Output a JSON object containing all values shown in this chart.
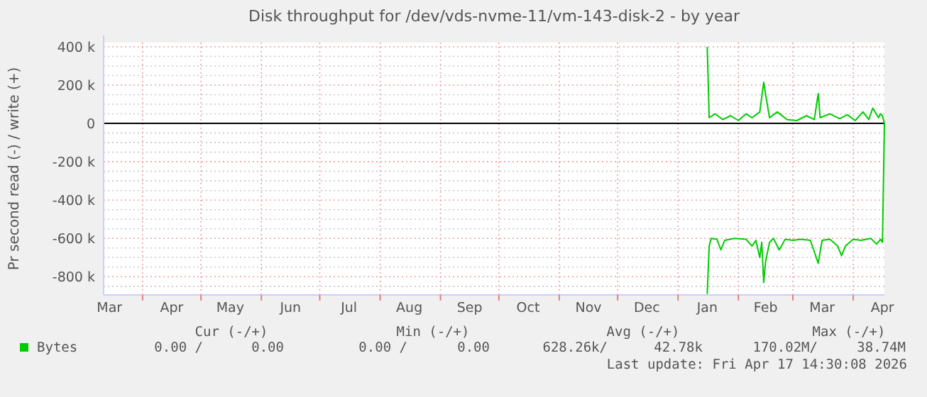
{
  "chart_data": {
    "type": "line",
    "title": "Disk throughput for /dev/vds-nvme-11/vm-143-disk-2 - by year",
    "ylabel": "Pr second read (-) / write (+)",
    "xlim": [
      "2025-03-12",
      "2026-04-17"
    ],
    "xticks": [
      {
        "value": "2025-03-15",
        "label": "Mar"
      },
      {
        "value": "2025-04-01",
        "label": null
      },
      {
        "value": "2025-04-16",
        "label": "Apr"
      },
      {
        "value": "2025-05-01",
        "label": null
      },
      {
        "value": "2025-05-16",
        "label": "May"
      },
      {
        "value": "2025-06-01",
        "label": null
      },
      {
        "value": "2025-06-16",
        "label": "Jun"
      },
      {
        "value": "2025-07-01",
        "label": null
      },
      {
        "value": "2025-07-16",
        "label": "Jul"
      },
      {
        "value": "2025-08-01",
        "label": null
      },
      {
        "value": "2025-08-16",
        "label": "Aug"
      },
      {
        "value": "2025-09-01",
        "label": null
      },
      {
        "value": "2025-09-16",
        "label": "Sep"
      },
      {
        "value": "2025-10-01",
        "label": null
      },
      {
        "value": "2025-10-16",
        "label": "Oct"
      },
      {
        "value": "2025-11-01",
        "label": null
      },
      {
        "value": "2025-11-16",
        "label": "Nov"
      },
      {
        "value": "2025-12-01",
        "label": null
      },
      {
        "value": "2025-12-16",
        "label": "Dec"
      },
      {
        "value": "2026-01-01",
        "label": null
      },
      {
        "value": "2026-01-16",
        "label": "Jan"
      },
      {
        "value": "2026-02-01",
        "label": null
      },
      {
        "value": "2026-02-15",
        "label": "Feb"
      },
      {
        "value": "2026-03-01",
        "label": null
      },
      {
        "value": "2026-03-16",
        "label": "Mar"
      },
      {
        "value": "2026-04-01",
        "label": null
      },
      {
        "value": "2026-04-16",
        "label": "Apr"
      }
    ],
    "ylim": [
      -895000,
      422000
    ],
    "yticks": [
      {
        "value": -850000,
        "label": null
      },
      {
        "value": -800000,
        "label": "-800 k"
      },
      {
        "value": -750000,
        "label": null
      },
      {
        "value": -700000,
        "label": null
      },
      {
        "value": -650000,
        "label": null
      },
      {
        "value": -600000,
        "label": "-600 k"
      },
      {
        "value": -550000,
        "label": null
      },
      {
        "value": -500000,
        "label": null
      },
      {
        "value": -450000,
        "label": null
      },
      {
        "value": -400000,
        "label": "-400 k"
      },
      {
        "value": -350000,
        "label": null
      },
      {
        "value": -300000,
        "label": null
      },
      {
        "value": -250000,
        "label": null
      },
      {
        "value": -200000,
        "label": "-200 k"
      },
      {
        "value": -150000,
        "label": null
      },
      {
        "value": -100000,
        "label": null
      },
      {
        "value": -50000,
        "label": null
      },
      {
        "value": 0,
        "label": "0"
      },
      {
        "value": 50000,
        "label": null
      },
      {
        "value": 100000,
        "label": null
      },
      {
        "value": 150000,
        "label": null
      },
      {
        "value": 200000,
        "label": "200 k"
      },
      {
        "value": 250000,
        "label": null
      },
      {
        "value": 300000,
        "label": null
      },
      {
        "value": 350000,
        "label": null
      },
      {
        "value": 400000,
        "label": "400 k"
      }
    ],
    "grid": true,
    "legend": "bottom",
    "marker": "none",
    "line_style": "solid",
    "ref_lines": [
      {
        "axis": "y",
        "value": 0,
        "color": "#000000"
      }
    ],
    "series": [
      {
        "name": "Bytes",
        "color": "#00cc00",
        "x": [
          "2026-01-16",
          "2026-01-17",
          "2026-01-20",
          "2026-01-24",
          "2026-01-28",
          "2026-02-01",
          "2026-02-05",
          "2026-02-08",
          "2026-02-12",
          "2026-02-14",
          "2026-02-15",
          "2026-02-17",
          "2026-02-21",
          "2026-02-26",
          "2026-03-03",
          "2026-03-08",
          "2026-03-12",
          "2026-03-14",
          "2026-03-15",
          "2026-03-20",
          "2026-03-25",
          "2026-03-29",
          "2026-04-02",
          "2026-04-06",
          "2026-04-09",
          "2026-04-11",
          "2026-04-14",
          "2026-04-15",
          "2026-04-16",
          "2026-04-17",
          null,
          "2026-01-16",
          "2026-01-17",
          "2026-01-18",
          "2026-01-21",
          "2026-01-23",
          "2026-01-25",
          "2026-01-30",
          "2026-02-05",
          "2026-02-08",
          "2026-02-10",
          "2026-02-12",
          "2026-02-13",
          "2026-02-14",
          "2026-02-15",
          "2026-02-17",
          "2026-02-19",
          "2026-02-22",
          "2026-02-25",
          "2026-03-01",
          "2026-03-05",
          "2026-03-10",
          "2026-03-14",
          "2026-03-16",
          "2026-03-20",
          "2026-03-24",
          "2026-03-26",
          "2026-03-28",
          "2026-04-01",
          "2026-04-05",
          "2026-04-10",
          "2026-04-13",
          "2026-04-15",
          "2026-04-16",
          "2026-04-17"
        ],
        "values": [
          400000,
          30000,
          50000,
          20000,
          40000,
          15000,
          50000,
          30000,
          60000,
          215000,
          150000,
          30000,
          60000,
          20000,
          15000,
          40000,
          20000,
          155000,
          30000,
          50000,
          25000,
          45000,
          15000,
          60000,
          20000,
          80000,
          30000,
          50000,
          40000,
          0,
          null,
          -890000,
          -640000,
          -600000,
          -605000,
          -660000,
          -610000,
          -600000,
          -605000,
          -640000,
          -610000,
          -700000,
          -620000,
          -830000,
          -720000,
          -620000,
          -600000,
          -660000,
          -605000,
          -610000,
          -605000,
          -610000,
          -730000,
          -610000,
          -605000,
          -640000,
          -690000,
          -640000,
          -605000,
          -610000,
          -600000,
          -630000,
          -605000,
          -620000,
          0
        ]
      }
    ],
    "annotations": [
      "Cur (-/+)",
      "Min (-/+)",
      "Avg (-/+)",
      "Max (-/+)",
      "0.00 /",
      "0.00",
      "0.00 /",
      "0.00",
      "628.26k/",
      "42.78k",
      "170.02M/",
      "38.74M",
      "Last update: Fri Apr 17 14:30:08 2026"
    ]
  }
}
